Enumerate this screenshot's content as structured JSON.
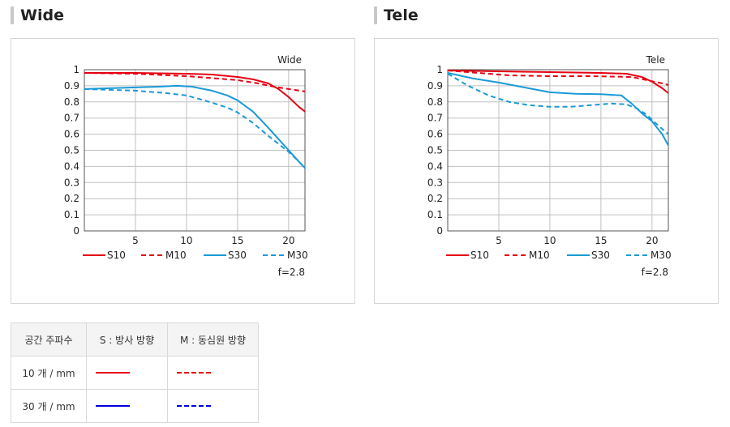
{
  "sections": {
    "wide_title": "Wide",
    "tele_title": "Tele"
  },
  "chart_data": [
    {
      "type": "line",
      "title": "Wide",
      "xlabel": "",
      "ylabel": "",
      "xlim": [
        0,
        21.6
      ],
      "ylim": [
        0,
        1
      ],
      "x_ticks": [
        5,
        10,
        15,
        20
      ],
      "y_ticks": [
        0,
        0.1,
        0.2,
        0.3,
        0.4,
        0.5,
        0.6,
        0.7,
        0.8,
        0.9,
        1
      ],
      "y_tick_labels": [
        "0",
        "0.1",
        "0.2",
        "0.3",
        "0.4",
        "0.5",
        "0.6",
        "0.7",
        "0.8",
        "0.9",
        "1"
      ],
      "grid": true,
      "legend_position": "bottom",
      "annotation": "f=2.8",
      "series": [
        {
          "name": "S10",
          "color": "#e60012",
          "dash": "solid",
          "points": [
            [
              0,
              0.98
            ],
            [
              5,
              0.98
            ],
            [
              10,
              0.975
            ],
            [
              12.5,
              0.97
            ],
            [
              15,
              0.955
            ],
            [
              16.5,
              0.94
            ],
            [
              18,
              0.915
            ],
            [
              19,
              0.88
            ],
            [
              20,
              0.83
            ],
            [
              21,
              0.77
            ],
            [
              21.6,
              0.74
            ]
          ]
        },
        {
          "name": "M10",
          "color": "#e60012",
          "dash": "dashed",
          "points": [
            [
              0,
              0.98
            ],
            [
              5,
              0.975
            ],
            [
              10,
              0.96
            ],
            [
              13,
              0.945
            ],
            [
              15,
              0.935
            ],
            [
              17,
              0.915
            ],
            [
              18.5,
              0.895
            ],
            [
              20,
              0.88
            ],
            [
              21.6,
              0.865
            ]
          ]
        },
        {
          "name": "S30",
          "color": "#1a9ad6",
          "dash": "solid",
          "points": [
            [
              0,
              0.88
            ],
            [
              2.5,
              0.885
            ],
            [
              5,
              0.89
            ],
            [
              7.5,
              0.895
            ],
            [
              9,
              0.9
            ],
            [
              10.5,
              0.895
            ],
            [
              12.5,
              0.87
            ],
            [
              14,
              0.84
            ],
            [
              15,
              0.81
            ],
            [
              16.5,
              0.74
            ],
            [
              18,
              0.64
            ],
            [
              19,
              0.57
            ],
            [
              20,
              0.5
            ],
            [
              21,
              0.43
            ],
            [
              21.6,
              0.39
            ]
          ]
        },
        {
          "name": "M30",
          "color": "#1a9ad6",
          "dash": "dashed",
          "points": [
            [
              0,
              0.88
            ],
            [
              5,
              0.87
            ],
            [
              8,
              0.855
            ],
            [
              10,
              0.84
            ],
            [
              12,
              0.805
            ],
            [
              14,
              0.765
            ],
            [
              15,
              0.735
            ],
            [
              16.5,
              0.67
            ],
            [
              18,
              0.59
            ],
            [
              19,
              0.54
            ],
            [
              20,
              0.49
            ],
            [
              21,
              0.43
            ],
            [
              21.6,
              0.39
            ]
          ]
        }
      ]
    },
    {
      "type": "line",
      "title": "Tele",
      "xlabel": "",
      "ylabel": "",
      "xlim": [
        0,
        21.6
      ],
      "ylim": [
        0,
        1
      ],
      "x_ticks": [
        5,
        10,
        15,
        20
      ],
      "y_ticks": [
        0,
        0.1,
        0.2,
        0.3,
        0.4,
        0.5,
        0.6,
        0.7,
        0.8,
        0.9,
        1
      ],
      "y_tick_labels": [
        "0",
        "0.1",
        "0.2",
        "0.3",
        "0.4",
        "0.5",
        "0.6",
        "0.7",
        "0.8",
        "0.9",
        "1"
      ],
      "grid": true,
      "legend_position": "bottom",
      "annotation": "f=2.8",
      "series": [
        {
          "name": "S10",
          "color": "#e60012",
          "dash": "solid",
          "points": [
            [
              0,
              0.995
            ],
            [
              5,
              0.99
            ],
            [
              10,
              0.985
            ],
            [
              15,
              0.98
            ],
            [
              17.5,
              0.975
            ],
            [
              19,
              0.955
            ],
            [
              20,
              0.925
            ],
            [
              21,
              0.885
            ],
            [
              21.6,
              0.855
            ]
          ]
        },
        {
          "name": "M10",
          "color": "#e60012",
          "dash": "dashed",
          "points": [
            [
              0,
              0.995
            ],
            [
              3,
              0.98
            ],
            [
              6,
              0.965
            ],
            [
              10,
              0.96
            ],
            [
              14,
              0.96
            ],
            [
              18,
              0.955
            ],
            [
              19.5,
              0.935
            ],
            [
              21,
              0.915
            ],
            [
              21.6,
              0.905
            ]
          ]
        },
        {
          "name": "S30",
          "color": "#1a9ad6",
          "dash": "solid",
          "points": [
            [
              0,
              0.98
            ],
            [
              2.5,
              0.945
            ],
            [
              5,
              0.92
            ],
            [
              7.5,
              0.89
            ],
            [
              10,
              0.86
            ],
            [
              12.5,
              0.85
            ],
            [
              15,
              0.848
            ],
            [
              17,
              0.84
            ],
            [
              18,
              0.79
            ],
            [
              19,
              0.73
            ],
            [
              20,
              0.68
            ],
            [
              21,
              0.6
            ],
            [
              21.6,
              0.53
            ]
          ]
        },
        {
          "name": "M30",
          "color": "#1a9ad6",
          "dash": "dashed",
          "points": [
            [
              0,
              0.975
            ],
            [
              2,
              0.9
            ],
            [
              4,
              0.84
            ],
            [
              6,
              0.8
            ],
            [
              8,
              0.78
            ],
            [
              10,
              0.77
            ],
            [
              12,
              0.77
            ],
            [
              14,
              0.78
            ],
            [
              16,
              0.79
            ],
            [
              17.5,
              0.785
            ],
            [
              18.5,
              0.76
            ],
            [
              19.5,
              0.72
            ],
            [
              20.5,
              0.66
            ],
            [
              21.6,
              0.6
            ]
          ]
        }
      ]
    }
  ],
  "legend_table": {
    "headers": [
      "공간 주파수",
      "S : 방사 방향",
      "M : 동심원 방향"
    ],
    "rows": [
      {
        "label": "10 개 / mm",
        "s_color": "#e60012",
        "m_color": "#e60012"
      },
      {
        "label": "30 개 / mm",
        "s_color": "#0000dd",
        "m_color": "#0000dd"
      }
    ]
  }
}
